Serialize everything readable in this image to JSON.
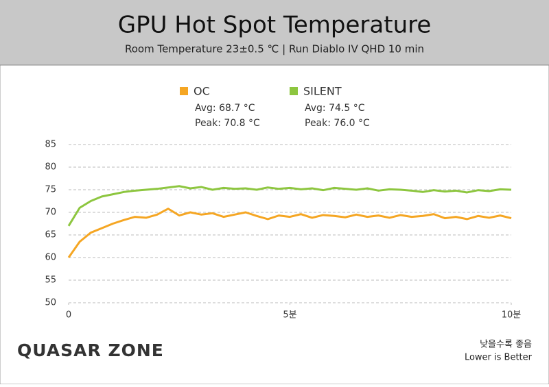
{
  "chart_data": {
    "type": "line",
    "title": "GPU Hot Spot Temperature",
    "subtitle": "Room Temperature 23±0.5 ℃  |  Run Diablo IV QHD 10 min",
    "x": [
      0,
      0.25,
      0.5,
      0.75,
      1,
      1.25,
      1.5,
      1.75,
      2,
      2.25,
      2.5,
      2.75,
      3,
      3.25,
      3.5,
      3.75,
      4,
      4.25,
      4.5,
      4.75,
      5,
      5.25,
      5.5,
      5.75,
      6,
      6.25,
      6.5,
      6.75,
      7,
      7.25,
      7.5,
      7.75,
      8,
      8.25,
      8.5,
      8.75,
      9,
      9.25,
      9.5,
      9.75,
      10
    ],
    "series": [
      {
        "name": "OC",
        "color": "#f5a623",
        "stats": [
          "Avg: 68.7 °C",
          "Peak: 70.8 °C"
        ],
        "values": [
          60,
          63.5,
          65.5,
          66.5,
          67.5,
          68.3,
          69,
          68.8,
          69.5,
          70.8,
          69.3,
          70,
          69.5,
          69.8,
          69,
          69.5,
          70,
          69.2,
          68.5,
          69.3,
          69,
          69.6,
          68.8,
          69.4,
          69.2,
          68.9,
          69.5,
          69,
          69.3,
          68.8,
          69.4,
          69,
          69.2,
          69.6,
          68.7,
          69,
          68.5,
          69.2,
          68.8,
          69.3,
          68.7
        ]
      },
      {
        "name": "SILENT",
        "color": "#8dc63f",
        "stats": [
          "Avg: 74.5 °C",
          "Peak: 76.0 °C"
        ],
        "values": [
          67,
          71,
          72.5,
          73.5,
          74,
          74.5,
          74.8,
          75,
          75.2,
          75.5,
          75.8,
          75.3,
          75.6,
          75,
          75.4,
          75.2,
          75.3,
          75,
          75.5,
          75.2,
          75.4,
          75.1,
          75.3,
          74.9,
          75.4,
          75.2,
          75,
          75.3,
          74.8,
          75.1,
          75,
          74.8,
          74.5,
          74.9,
          74.6,
          74.8,
          74.4,
          74.9,
          74.7,
          75.1,
          75
        ]
      }
    ],
    "xlim": [
      0,
      10
    ],
    "xticks": [
      0,
      {
        "value": 5,
        "label": "5분"
      },
      {
        "value": 10,
        "label": "10분"
      }
    ],
    "ylim": [
      50,
      85
    ],
    "yticks": [
      50,
      55,
      60,
      65,
      70,
      75,
      80,
      85
    ],
    "grid": true,
    "logo": "QUASAR ZONE",
    "note": [
      "낮을수록 좋음",
      "Lower is Better"
    ]
  }
}
